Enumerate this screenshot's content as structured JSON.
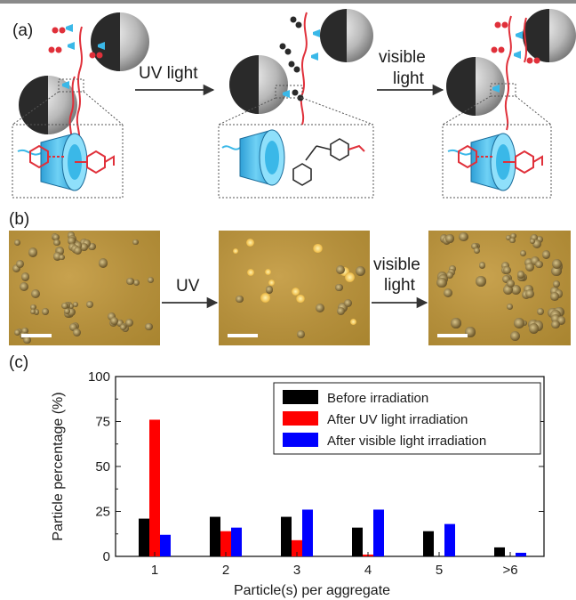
{
  "panels": {
    "a": {
      "label": "(a)",
      "arrow1_text": "UV light",
      "arrow2_line1": "visible",
      "arrow2_line2": "light",
      "colors": {
        "azo": "#e0303a",
        "cyclodextrin": "#3ab8e8",
        "particle_dark": "#2a2a2a",
        "particle_light": "#bdbdbd"
      },
      "icons": [
        "janus-particle-icon",
        "cyclodextrin-icon",
        "azobenzene-icon"
      ]
    },
    "b": {
      "label": "(b)",
      "arrow1_text": "UV",
      "arrow2_line1": "visible",
      "arrow2_line2": "light"
    },
    "c": {
      "label": "(c)"
    }
  },
  "chart_data": {
    "type": "bar",
    "categories": [
      "1",
      "2",
      "3",
      "4",
      "5",
      ">6"
    ],
    "series": [
      {
        "name": "Before irradiation",
        "color": "#000000",
        "values": [
          21,
          22,
          22,
          16,
          14,
          5
        ]
      },
      {
        "name": "After UV light irradiation",
        "color": "#ff0000",
        "values": [
          76,
          14,
          9,
          1,
          0,
          0
        ]
      },
      {
        "name": "After visible light irradiation",
        "color": "#0000ff",
        "values": [
          12,
          16,
          26,
          26,
          18,
          2
        ]
      }
    ],
    "xlabel": "Particle(s) per aggregate",
    "ylabel": "Particle percentage (%)",
    "ylim": [
      0,
      100
    ],
    "yticks": [
      0,
      25,
      50,
      75,
      100
    ],
    "legend": "top-right",
    "grid": false
  }
}
